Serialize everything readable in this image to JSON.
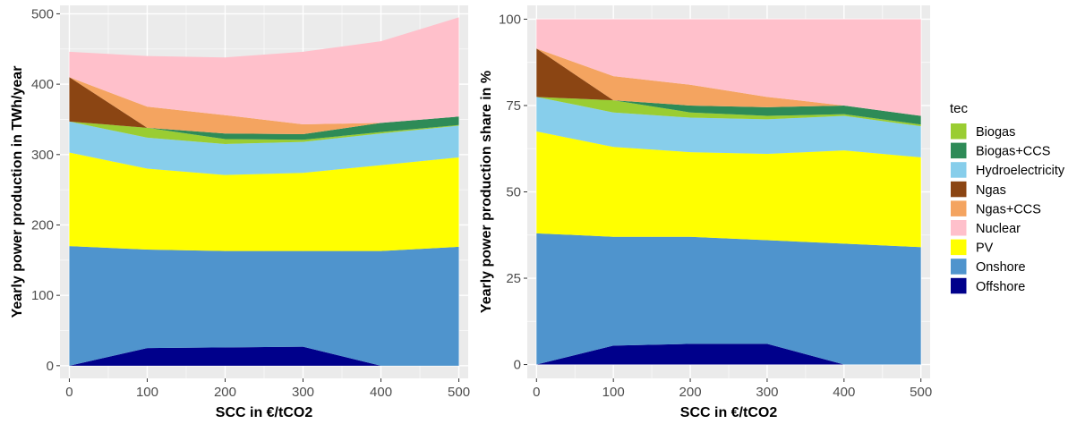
{
  "legend": {
    "title": "tec",
    "items": [
      {
        "label": "Biogas",
        "color": "#9acd32"
      },
      {
        "label": "Biogas+CCS",
        "color": "#2e8b57"
      },
      {
        "label": "Hydroelectricity",
        "color": "#87ceeb"
      },
      {
        "label": "Ngas",
        "color": "#8b4513"
      },
      {
        "label": "Ngas+CCS",
        "color": "#f4a460"
      },
      {
        "label": "Nuclear",
        "color": "#ffc0cb"
      },
      {
        "label": "PV",
        "color": "#ffff00"
      },
      {
        "label": "Onshore",
        "color": "#4f94cd"
      },
      {
        "label": "Offshore",
        "color": "#00008b"
      }
    ]
  },
  "chart_data": [
    {
      "type": "area",
      "stacked": true,
      "title": "",
      "xlabel": "SCC in €/tCO2",
      "ylabel": "Yearly power production in TWh/year",
      "x": [
        0,
        100,
        200,
        300,
        400,
        500
      ],
      "xticks": [
        "0",
        "100",
        "200",
        "300",
        "400",
        "500"
      ],
      "yticks": [
        "0",
        "100",
        "200",
        "300",
        "400",
        "500"
      ],
      "xlim": [
        -12,
        512
      ],
      "ylim": [
        -18,
        512
      ],
      "grid": true,
      "panel_background": "#ebebeb",
      "series": [
        {
          "name": "Offshore",
          "values": [
            0,
            25,
            26,
            27,
            0,
            0
          ]
        },
        {
          "name": "Onshore",
          "values": [
            170,
            140,
            137,
            136,
            163,
            169
          ]
        },
        {
          "name": "PV",
          "values": [
            133,
            115,
            108,
            111,
            122,
            127
          ]
        },
        {
          "name": "Hydroelectricity",
          "values": [
            44,
            44,
            44,
            44,
            45,
            45
          ]
        },
        {
          "name": "Biogas",
          "values": [
            0,
            14,
            7,
            3,
            2,
            1
          ]
        },
        {
          "name": "Biogas+CCS",
          "values": [
            0,
            0,
            8,
            8,
            13,
            12
          ]
        },
        {
          "name": "Ngas",
          "values": [
            63,
            0,
            0,
            0,
            0,
            0
          ]
        },
        {
          "name": "Ngas+CCS",
          "values": [
            0,
            30,
            26,
            14,
            0,
            0
          ]
        },
        {
          "name": "Nuclear",
          "values": [
            36,
            72,
            82,
            103,
            116,
            141
          ]
        }
      ]
    },
    {
      "type": "area",
      "stacked": true,
      "title": "",
      "xlabel": "SCC in €/tCO2",
      "ylabel": "Yearly power production share in %",
      "x": [
        0,
        100,
        200,
        300,
        400,
        500
      ],
      "xticks": [
        "0",
        "100",
        "200",
        "300",
        "400",
        "500"
      ],
      "yticks": [
        "0",
        "25",
        "50",
        "75",
        "100"
      ],
      "xlim": [
        -12,
        512
      ],
      "ylim": [
        -4,
        104
      ],
      "grid": true,
      "panel_background": "#ebebeb",
      "series": [
        {
          "name": "Offshore",
          "values": [
            0,
            5.5,
            6,
            6,
            0,
            0
          ]
        },
        {
          "name": "Onshore",
          "values": [
            38,
            31.5,
            31,
            30,
            35,
            34
          ]
        },
        {
          "name": "PV",
          "values": [
            29.5,
            26,
            24.5,
            25,
            27,
            26
          ]
        },
        {
          "name": "Hydroelectricity",
          "values": [
            10,
            10,
            10,
            10,
            10,
            9
          ]
        },
        {
          "name": "Biogas",
          "values": [
            0,
            3.5,
            1.5,
            1,
            0.5,
            0.5
          ]
        },
        {
          "name": "Biogas+CCS",
          "values": [
            0,
            0,
            2,
            2.5,
            2.5,
            2.5
          ]
        },
        {
          "name": "Ngas",
          "values": [
            14,
            0,
            0,
            0,
            0,
            0
          ]
        },
        {
          "name": "Ngas+CCS",
          "values": [
            0,
            7,
            6,
            3,
            0,
            0
          ]
        },
        {
          "name": "Nuclear",
          "values": [
            8.5,
            16.5,
            19,
            22.5,
            25,
            28
          ]
        }
      ]
    }
  ]
}
